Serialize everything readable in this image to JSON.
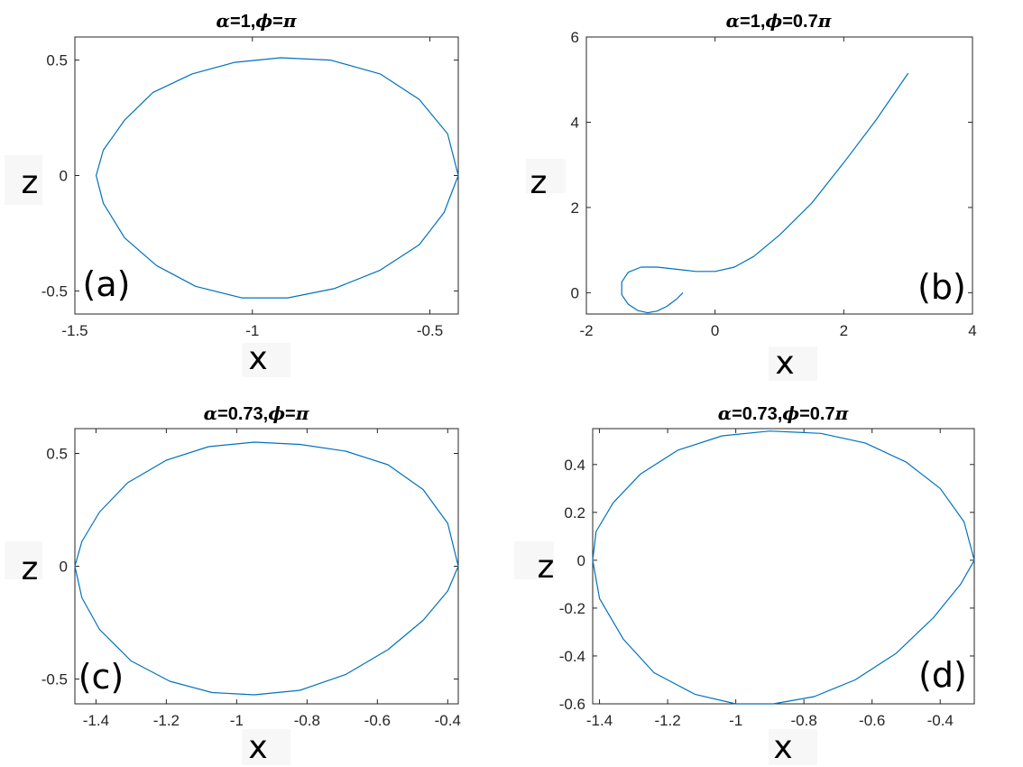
{
  "figure": {
    "line_color": "#0072bd",
    "panels": [
      {
        "tag": "(a)",
        "title_parts": [
          {
            "text": "α",
            "greek": true
          },
          {
            "text": "=1,",
            "greek": false
          },
          {
            "text": "ϕ",
            "greek": true
          },
          {
            "text": "=",
            "greek": false
          },
          {
            "text": "π",
            "greek": true
          }
        ],
        "xlabel": "x",
        "ylabel": "z"
      },
      {
        "tag": "(b)",
        "title_parts": [
          {
            "text": "α",
            "greek": true
          },
          {
            "text": "=1,",
            "greek": false
          },
          {
            "text": "ϕ",
            "greek": true
          },
          {
            "text": "=0.7",
            "greek": false
          },
          {
            "text": "π",
            "greek": true
          }
        ],
        "xlabel": "x",
        "ylabel": "z"
      },
      {
        "tag": "(c)",
        "title_parts": [
          {
            "text": "α",
            "greek": true
          },
          {
            "text": "=0.73,",
            "greek": false
          },
          {
            "text": "ϕ",
            "greek": true
          },
          {
            "text": "=",
            "greek": false
          },
          {
            "text": "π",
            "greek": true
          }
        ],
        "xlabel": "x",
        "ylabel": "z"
      },
      {
        "tag": "(d)",
        "title_parts": [
          {
            "text": "α",
            "greek": true
          },
          {
            "text": "=0.73,",
            "greek": false
          },
          {
            "text": "ϕ",
            "greek": true
          },
          {
            "text": "=0.7",
            "greek": false
          },
          {
            "text": "π",
            "greek": true
          }
        ],
        "xlabel": "x",
        "ylabel": "z"
      }
    ]
  },
  "chart_data": [
    {
      "type": "line",
      "title": "α=1,ϕ=π",
      "xlabel": "x",
      "ylabel": "z",
      "xlim": [
        -1.5,
        -0.42
      ],
      "ylim": [
        -0.6,
        0.6
      ],
      "xticks": [
        -1.5,
        -1,
        -0.5
      ],
      "xtick_labels": [
        "-1.5",
        "-1",
        "-0.5"
      ],
      "yticks": [
        -0.5,
        0,
        0.5
      ],
      "ytick_labels": [
        "-0.5",
        "0",
        "0.5"
      ],
      "grid": false,
      "series": [
        {
          "x": [
            -0.42,
            -0.45,
            -0.53,
            -0.64,
            -0.78,
            -0.92,
            -1.05,
            -1.17,
            -1.28,
            -1.36,
            -1.42,
            -1.44,
            -1.42,
            -1.36,
            -1.27,
            -1.16,
            -1.03,
            -0.9,
            -0.77,
            -0.64,
            -0.53,
            -0.46,
            -0.42
          ],
          "y": [
            0.0,
            0.18,
            0.33,
            0.44,
            0.5,
            0.51,
            0.49,
            0.44,
            0.36,
            0.24,
            0.11,
            0.0,
            -0.12,
            -0.27,
            -0.39,
            -0.48,
            -0.53,
            -0.53,
            -0.49,
            -0.41,
            -0.3,
            -0.16,
            0.0
          ]
        }
      ]
    },
    {
      "type": "line",
      "title": "α=1,ϕ=0.7π",
      "xlabel": "x",
      "ylabel": "z",
      "xlim": [
        -2,
        4
      ],
      "ylim": [
        -0.5,
        6
      ],
      "xticks": [
        -2,
        0,
        2,
        4
      ],
      "xtick_labels": [
        "-2",
        "0",
        "2",
        "4"
      ],
      "yticks": [
        0,
        2,
        4,
        6
      ],
      "ytick_labels": [
        "0",
        "2",
        "4",
        "6"
      ],
      "grid": false,
      "series": [
        {
          "x": [
            -0.5,
            -0.6,
            -0.75,
            -0.9,
            -1.05,
            -1.2,
            -1.35,
            -1.45,
            -1.45,
            -1.35,
            -1.15,
            -0.9,
            -0.6,
            -0.3,
            0.0,
            0.3,
            0.6,
            1.0,
            1.5,
            2.0,
            2.5,
            3.0
          ],
          "y": [
            0.0,
            -0.15,
            -0.32,
            -0.43,
            -0.47,
            -0.42,
            -0.27,
            -0.05,
            0.25,
            0.48,
            0.6,
            0.6,
            0.55,
            0.5,
            0.5,
            0.6,
            0.85,
            1.35,
            2.1,
            3.05,
            4.05,
            5.15
          ]
        }
      ]
    },
    {
      "type": "line",
      "title": "α=0.73,ϕ=π",
      "xlabel": "x",
      "ylabel": "z",
      "xlim": [
        -1.46,
        -0.37
      ],
      "ylim": [
        -0.61,
        0.61
      ],
      "xticks": [
        -1.4,
        -1.2,
        -1,
        -0.8,
        -0.6,
        -0.4
      ],
      "xtick_labels": [
        "-1.4",
        "-1.2",
        "-1",
        "-0.8",
        "-0.6",
        "-0.4"
      ],
      "yticks": [
        -0.5,
        0,
        0.5
      ],
      "ytick_labels": [
        "-0.5",
        "0",
        "0.5"
      ],
      "grid": false,
      "series": [
        {
          "x": [
            -0.37,
            -0.4,
            -0.47,
            -0.57,
            -0.69,
            -0.82,
            -0.95,
            -1.08,
            -1.2,
            -1.31,
            -1.39,
            -1.44,
            -1.46,
            -1.44,
            -1.39,
            -1.3,
            -1.19,
            -1.07,
            -0.95,
            -0.82,
            -0.69,
            -0.57,
            -0.47,
            -0.4,
            -0.37
          ],
          "y": [
            0.0,
            0.19,
            0.34,
            0.45,
            0.51,
            0.54,
            0.55,
            0.53,
            0.47,
            0.37,
            0.24,
            0.11,
            0.0,
            -0.14,
            -0.28,
            -0.42,
            -0.51,
            -0.56,
            -0.57,
            -0.55,
            -0.48,
            -0.37,
            -0.24,
            -0.11,
            0.0
          ]
        }
      ]
    },
    {
      "type": "line",
      "title": "α=0.73,ϕ=0.7π",
      "xlabel": "x",
      "ylabel": "z",
      "xlim": [
        -1.42,
        -0.3
      ],
      "ylim": [
        -0.6,
        0.55
      ],
      "xticks": [
        -1.4,
        -1.2,
        -1,
        -0.8,
        -0.6,
        -0.4
      ],
      "xtick_labels": [
        "-1.4",
        "-1.2",
        "-1",
        "-0.8",
        "-0.6",
        "-0.4"
      ],
      "yticks": [
        -0.6,
        -0.4,
        -0.2,
        0,
        0.2,
        0.4
      ],
      "ytick_labels": [
        "-0.6",
        "-0.4",
        "-0.2",
        "0",
        "0.2",
        "0.4"
      ],
      "grid": false,
      "series": [
        {
          "x": [
            -0.3,
            -0.33,
            -0.4,
            -0.5,
            -0.62,
            -0.75,
            -0.9,
            -1.04,
            -1.17,
            -1.28,
            -1.36,
            -1.41,
            -1.42,
            -1.4,
            -1.33,
            -1.24,
            -1.12,
            -1.0,
            -0.89,
            -0.77,
            -0.65,
            -0.53,
            -0.42,
            -0.34,
            -0.3
          ],
          "y": [
            0.0,
            0.16,
            0.3,
            0.41,
            0.49,
            0.53,
            0.54,
            0.52,
            0.46,
            0.36,
            0.24,
            0.12,
            0.0,
            -0.16,
            -0.33,
            -0.47,
            -0.56,
            -0.6,
            -0.6,
            -0.57,
            -0.5,
            -0.39,
            -0.24,
            -0.1,
            0.0
          ]
        }
      ]
    }
  ]
}
